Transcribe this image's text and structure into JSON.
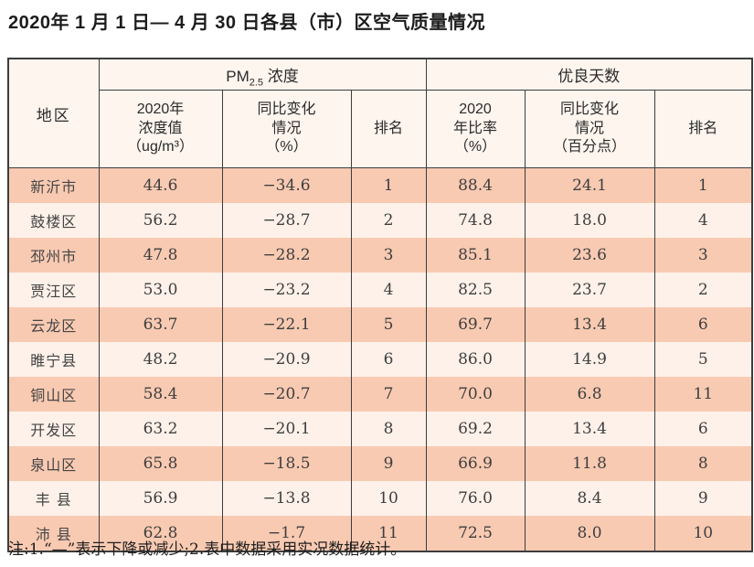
{
  "page": {
    "title": "2020年 1 月 1 日— 4 月 30 日各县（市）区空气质量情况",
    "note": "注:1.“—”表示下降或减少;2.表中数据采用实况数据统计。"
  },
  "colors": {
    "row_odd": "#f8cab2",
    "row_even": "#fdf1e9",
    "header_bg": "#fdf5ee",
    "border": "#3d3d3d"
  },
  "table": {
    "region_header": "地区",
    "group_pm": {
      "prefix": "PM",
      "sub": "2.5",
      "suffix": " 浓度"
    },
    "group_days": "优良天数",
    "subheaders": {
      "pm_value": "2020年\n浓度值\n（ug/m³）",
      "pm_change": "同比变化\n情况\n（%）",
      "pm_rank": "排名",
      "ratio": "2020\n年比率\n（%）",
      "ratio_change": "同比变化\n情况\n（百分点）",
      "ratio_rank": "排名"
    },
    "rows": [
      {
        "region": "新沂市",
        "pm_value": "44.6",
        "pm_change": "−34.6",
        "pm_rank": "1",
        "ratio": "88.4",
        "ratio_change": "24.1",
        "ratio_rank": "1"
      },
      {
        "region": "鼓楼区",
        "pm_value": "56.2",
        "pm_change": "−28.7",
        "pm_rank": "2",
        "ratio": "74.8",
        "ratio_change": "18.0",
        "ratio_rank": "4"
      },
      {
        "region": "邳州市",
        "pm_value": "47.8",
        "pm_change": "−28.2",
        "pm_rank": "3",
        "ratio": "85.1",
        "ratio_change": "23.6",
        "ratio_rank": "3"
      },
      {
        "region": "贾汪区",
        "pm_value": "53.0",
        "pm_change": "−23.2",
        "pm_rank": "4",
        "ratio": "82.5",
        "ratio_change": "23.7",
        "ratio_rank": "2"
      },
      {
        "region": "云龙区",
        "pm_value": "63.7",
        "pm_change": "−22.1",
        "pm_rank": "5",
        "ratio": "69.7",
        "ratio_change": "13.4",
        "ratio_rank": "6"
      },
      {
        "region": "睢宁县",
        "pm_value": "48.2",
        "pm_change": "−20.9",
        "pm_rank": "6",
        "ratio": "86.0",
        "ratio_change": "14.9",
        "ratio_rank": "5"
      },
      {
        "region": "铜山区",
        "pm_value": "58.4",
        "pm_change": "−20.7",
        "pm_rank": "7",
        "ratio": "70.0",
        "ratio_change": "6.8",
        "ratio_rank": "11"
      },
      {
        "region": "开发区",
        "pm_value": "63.2",
        "pm_change": "−20.1",
        "pm_rank": "8",
        "ratio": "69.2",
        "ratio_change": "13.4",
        "ratio_rank": "6"
      },
      {
        "region": "泉山区",
        "pm_value": "65.8",
        "pm_change": "−18.5",
        "pm_rank": "9",
        "ratio": "66.9",
        "ratio_change": "11.8",
        "ratio_rank": "8"
      },
      {
        "region": "丰 县",
        "pm_value": "56.9",
        "pm_change": "−13.8",
        "pm_rank": "10",
        "ratio": "76.0",
        "ratio_change": "8.4",
        "ratio_rank": "9"
      },
      {
        "region": "沛 县",
        "pm_value": "62.8",
        "pm_change": "−1.7",
        "pm_rank": "11",
        "ratio": "72.5",
        "ratio_change": "8.0",
        "ratio_rank": "10"
      }
    ]
  }
}
